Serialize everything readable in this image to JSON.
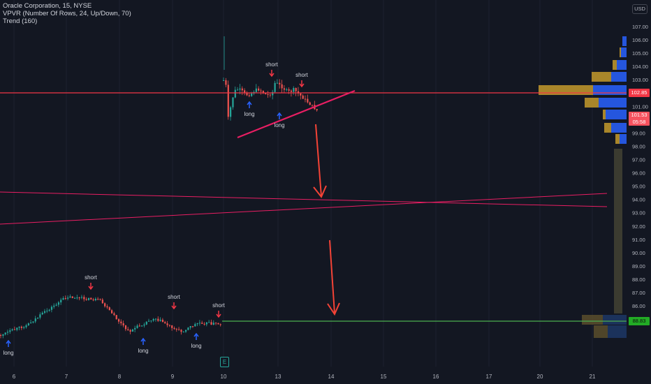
{
  "legend": {
    "symbol": "Oracle Corporation, 15, NYSE",
    "vpvr": "VPVR (Number Of Rows, 24, Up/Down, 70)",
    "trend": "Trend (160)"
  },
  "currency": "USD",
  "price_axis": {
    "ticks": [
      "107.00",
      "106.00",
      "105.00",
      "104.00",
      "103.00",
      "102.00",
      "101.00",
      "100.00",
      "99.00",
      "98.00",
      "97.00",
      "96.00",
      "95.00",
      "94.00",
      "93.00",
      "92.00",
      "91.00",
      "90.00",
      "89.00",
      "88.00",
      "87.00",
      "86.00"
    ],
    "min": 86,
    "max": 107
  },
  "time_axis": {
    "ticks": [
      "6",
      "7",
      "8",
      "9",
      "10",
      "13",
      "14",
      "15",
      "16",
      "17",
      "20",
      "21"
    ]
  },
  "badges": {
    "top_level": "102.85",
    "last_price": "101.53",
    "countdown": "05:58",
    "projected_level": "88.83"
  },
  "signal_labels": {
    "short": "short",
    "long": "long"
  },
  "earnings_marker": "E",
  "colors": {
    "background": "#131722",
    "up": "#26a69a",
    "down": "#ef5350",
    "resistance": "#f23645",
    "trend": "#e91e63",
    "target": "#4caf50",
    "vp_up": "#2962ff",
    "vp_down": "#c49a2b"
  },
  "chart_data": {
    "type": "candlestick",
    "levels": {
      "resistance": 102.85,
      "target": 88.83,
      "last": 101.53
    },
    "signals": [
      {
        "type": "short",
        "time": "7"
      },
      {
        "type": "long",
        "time": "6"
      },
      {
        "type": "long",
        "time": "8"
      },
      {
        "type": "short",
        "time": "9"
      },
      {
        "type": "long",
        "time": "9"
      },
      {
        "type": "short",
        "time": "10"
      },
      {
        "type": "long",
        "time": "10"
      },
      {
        "type": "short",
        "time": "13"
      },
      {
        "type": "long",
        "time": "13"
      },
      {
        "type": "short",
        "time": "13"
      }
    ]
  }
}
